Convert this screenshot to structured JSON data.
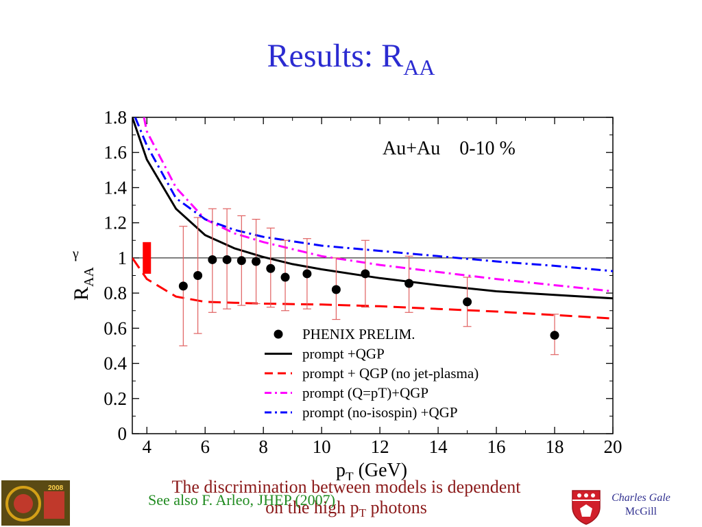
{
  "slide": {
    "title_main": "Results: R",
    "title_sub": "AA",
    "note_line1": "The discrimination between models is dependent",
    "note_line2_pre": "on the high p",
    "note_line2_sub": "T",
    "note_line2_post": " photons",
    "reference": "See also F. Arleo, JHEP (2007)",
    "author_name": "Charles Gale",
    "author_affiliation": "McGill",
    "logo_left_text": "2008",
    "title_color": "#2b2bd1",
    "note_color": "#8b1a1a",
    "reference_color": "#1f8a1f"
  },
  "chart_data": {
    "type": "line",
    "annotation": "Au+Au    0-10 %",
    "xlabel_main": "p",
    "xlabel_sub": "T",
    "xlabel_unit": " (GeV)",
    "ylabel_main": "R",
    "ylabel_sub": "AA",
    "ylabel_sup": "γ",
    "xlim": [
      3.5,
      20
    ],
    "ylim": [
      0,
      1.8
    ],
    "xticks": [
      4,
      6,
      8,
      10,
      12,
      14,
      16,
      18,
      20
    ],
    "yticks": [
      0,
      0.2,
      0.4,
      0.6,
      0.8,
      1,
      1.2,
      1.4,
      1.6,
      1.8
    ],
    "yticks_labels": [
      "0",
      "0.2",
      "0.4",
      "0.6",
      "0.8",
      "1",
      "1.2",
      "1.4",
      "1.6",
      "1.8"
    ],
    "reference_line_y": 1,
    "grid": false,
    "legend_position": "bottom-center",
    "normalization_box": {
      "x": 4,
      "y_low": 0.91,
      "y_high": 1.09,
      "color": "#ff0000"
    },
    "points": {
      "name": "PHENIX PRELIM.",
      "color": "#000000",
      "errbar_color": "#e06060",
      "data": [
        {
          "x": 5.25,
          "y": 0.84,
          "lo": 0.5,
          "hi": 1.18
        },
        {
          "x": 5.75,
          "y": 0.9,
          "lo": 0.57,
          "hi": 1.23
        },
        {
          "x": 6.25,
          "y": 0.99,
          "lo": 0.69,
          "hi": 1.28
        },
        {
          "x": 6.75,
          "y": 0.99,
          "lo": 0.71,
          "hi": 1.28
        },
        {
          "x": 7.25,
          "y": 0.985,
          "lo": 0.73,
          "hi": 1.24
        },
        {
          "x": 7.75,
          "y": 0.98,
          "lo": 0.74,
          "hi": 1.22
        },
        {
          "x": 8.25,
          "y": 0.94,
          "lo": 0.72,
          "hi": 1.17
        },
        {
          "x": 8.75,
          "y": 0.89,
          "lo": 0.7,
          "hi": 1.1
        },
        {
          "x": 9.5,
          "y": 0.91,
          "lo": 0.71,
          "hi": 1.11
        },
        {
          "x": 10.5,
          "y": 0.82,
          "lo": 0.65,
          "hi": 1.0
        },
        {
          "x": 11.5,
          "y": 0.91,
          "lo": 0.72,
          "hi": 1.1
        },
        {
          "x": 13,
          "y": 0.855,
          "lo": 0.69,
          "hi": 1.01
        },
        {
          "x": 15,
          "y": 0.75,
          "lo": 0.61,
          "hi": 0.89
        },
        {
          "x": 18,
          "y": 0.56,
          "lo": 0.45,
          "hi": 0.68
        }
      ]
    },
    "series": [
      {
        "name": "prompt +QGP",
        "color": "#000000",
        "dash": "solid",
        "x": [
          3.5,
          4,
          5,
          6,
          7,
          8,
          9,
          10,
          12,
          14,
          16,
          18,
          20
        ],
        "y": [
          1.8,
          1.56,
          1.28,
          1.13,
          1.055,
          1.005,
          0.965,
          0.935,
          0.885,
          0.845,
          0.81,
          0.79,
          0.77
        ]
      },
      {
        "name": "prompt + QGP (no jet-plasma)",
        "color": "#ff0000",
        "dash": "dashed",
        "x": [
          3.5,
          4,
          5,
          6,
          7,
          8,
          10,
          12,
          14,
          16,
          18,
          20
        ],
        "y": [
          1.0,
          0.88,
          0.78,
          0.75,
          0.745,
          0.74,
          0.735,
          0.725,
          0.71,
          0.695,
          0.675,
          0.655
        ]
      },
      {
        "name": "prompt (Q=pT)+QGP",
        "color": "#ff00ff",
        "dash": "dashdot",
        "x": [
          3.9,
          4,
          5,
          6,
          7,
          8,
          10,
          12,
          14,
          16,
          18,
          20
        ],
        "y": [
          1.8,
          1.72,
          1.4,
          1.22,
          1.14,
          1.09,
          1.01,
          0.96,
          0.92,
          0.88,
          0.845,
          0.81
        ]
      },
      {
        "name": "prompt (no-isospin) +QGP",
        "color": "#0000ff",
        "dash": "dashdot",
        "x": [
          3.6,
          4,
          5,
          6,
          7,
          8,
          10,
          12,
          14,
          16,
          18,
          20
        ],
        "y": [
          1.8,
          1.64,
          1.34,
          1.22,
          1.16,
          1.12,
          1.07,
          1.04,
          1.01,
          0.98,
          0.955,
          0.925
        ]
      }
    ]
  }
}
